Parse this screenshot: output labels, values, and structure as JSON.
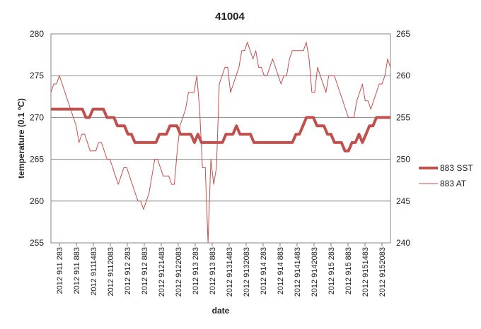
{
  "chart_data": {
    "type": "line",
    "title": "41004",
    "xlabel": "date",
    "ylabel": "temperature (0.1 ºC)",
    "ylim": [
      255,
      280
    ],
    "yticks": [
      255,
      260,
      265,
      270,
      275,
      280
    ],
    "y2lim": [
      240,
      265
    ],
    "y2ticks": [
      240,
      245,
      250,
      255,
      260,
      265
    ],
    "grid": true,
    "legend_position": "right",
    "x_tick_labels": [
      "2012 911 283",
      "2012 911 883",
      "2012 9111483",
      "2012 9112083",
      "2012 912 283",
      "2012 912 883",
      "2012 9121483",
      "2012 9122083",
      "2012 913 283",
      "2012 913 883",
      "2012 9131483",
      "2012 9132083",
      "2012 914 283",
      "2012 914 883",
      "2012 9141483",
      "2012 9142083",
      "2012 915 283",
      "2012 915 883",
      "2012 9151483",
      "2012 9152083"
    ],
    "series": [
      {
        "name": "883 SST",
        "axis": "left",
        "color": "#c0504d",
        "values": [
          271,
          271,
          271,
          271,
          271,
          271,
          271,
          271,
          271,
          271,
          270,
          270,
          271,
          271,
          271,
          271,
          270,
          270,
          270,
          269,
          269,
          269,
          268,
          268,
          267,
          267,
          267,
          267,
          267,
          267,
          267,
          268,
          268,
          268,
          269,
          269,
          269,
          268,
          268,
          268,
          268,
          267,
          268,
          267,
          267,
          267,
          267,
          267,
          267,
          267,
          268,
          268,
          268,
          269,
          268,
          268,
          268,
          268,
          267,
          267,
          267,
          267,
          267,
          267,
          267,
          267,
          267,
          267,
          267,
          267,
          268,
          268,
          269,
          270,
          270,
          270,
          269,
          269,
          269,
          268,
          268,
          267,
          267,
          267,
          266,
          266,
          267,
          267,
          268,
          267,
          268,
          269,
          269,
          270,
          270,
          270,
          270,
          270
        ]
      },
      {
        "name": "883 AT",
        "axis": "right",
        "color": "#c0504d",
        "values": [
          258,
          259,
          259,
          260,
          259,
          258,
          257,
          256,
          255,
          254,
          252,
          253,
          253,
          252,
          251,
          251,
          251,
          252,
          252,
          251,
          250,
          250,
          249,
          248,
          247,
          248,
          249,
          249,
          248,
          247,
          246,
          245,
          245,
          244,
          245,
          246,
          248,
          250,
          250,
          249,
          248,
          248,
          248,
          247,
          247,
          251,
          254,
          255,
          256,
          258,
          258,
          258,
          260,
          256,
          249,
          249,
          240,
          250,
          247,
          249,
          259,
          260,
          261,
          261,
          258,
          259,
          260,
          261,
          263,
          263,
          264,
          263,
          262,
          263,
          261,
          261,
          260,
          260,
          261,
          262,
          261,
          260,
          259,
          260,
          260,
          262,
          263,
          263,
          263,
          263,
          263,
          264,
          262,
          258,
          258,
          261,
          260,
          259,
          258,
          260,
          260,
          260,
          259,
          258,
          257,
          256,
          255,
          255,
          255,
          257,
          258,
          259,
          257,
          257,
          256,
          257,
          258,
          259,
          259,
          260,
          262,
          261
        ]
      }
    ]
  }
}
